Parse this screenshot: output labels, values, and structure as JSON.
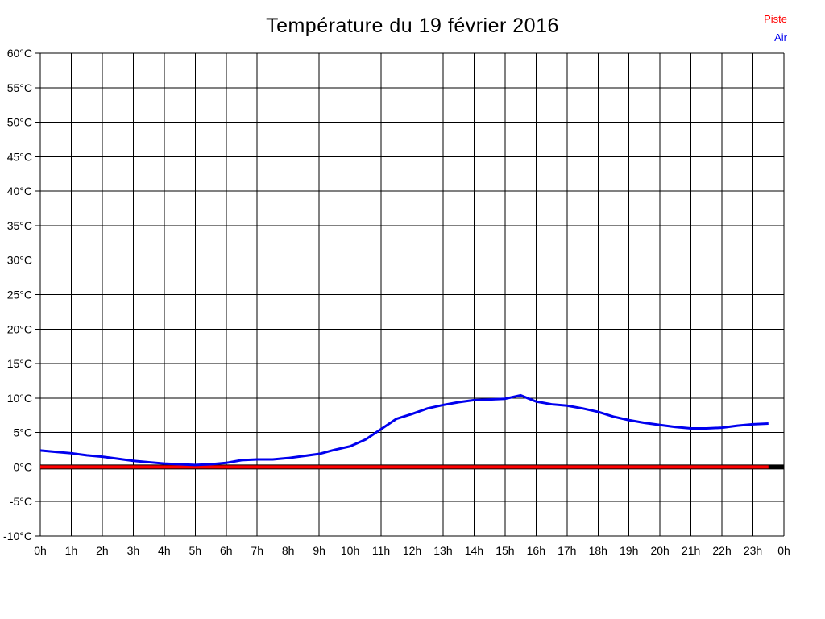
{
  "title": "Température du 19 février 2016",
  "legend": [
    {
      "label": "Piste",
      "color": "#ff0000"
    },
    {
      "label": "Air",
      "color": "#0000ee"
    }
  ],
  "colors": {
    "piste": "#ff0000",
    "air": "#0000ee",
    "grid": "#000000",
    "zero_baseline": "#000000",
    "background": "#ffffff"
  },
  "chart_data": {
    "type": "line",
    "title": "Température du 19 février 2016",
    "xlabel": "",
    "ylabel": "",
    "xlim": [
      0,
      24
    ],
    "ylim": [
      -10,
      60
    ],
    "x_step": 1,
    "y_step": 5,
    "grid": true,
    "legend_position": "top-right",
    "x_tick_labels": [
      "0h",
      "1h",
      "2h",
      "3h",
      "4h",
      "5h",
      "6h",
      "7h",
      "8h",
      "9h",
      "10h",
      "11h",
      "12h",
      "13h",
      "14h",
      "15h",
      "16h",
      "17h",
      "18h",
      "19h",
      "20h",
      "21h",
      "22h",
      "23h",
      "0h"
    ],
    "y_tick_labels": [
      "-10°C",
      "-5°C",
      "0°C",
      "5°C",
      "10°C",
      "15°C",
      "20°C",
      "25°C",
      "30°C",
      "35°C",
      "40°C",
      "45°C",
      "50°C",
      "55°C",
      "60°C"
    ],
    "zero_baseline": {
      "y": 0,
      "color": "#000000"
    },
    "series": [
      {
        "name": "Piste",
        "color": "#ff0000",
        "x": [
          0,
          23.5
        ],
        "values": [
          0,
          0
        ]
      },
      {
        "name": "Air",
        "color": "#0000ee",
        "x": [
          0,
          0.5,
          1,
          1.5,
          2,
          2.5,
          3,
          3.5,
          4,
          4.5,
          5,
          5.5,
          6,
          6.5,
          7,
          7.5,
          8,
          8.5,
          9,
          9.5,
          10,
          10.5,
          11,
          11.5,
          12,
          12.5,
          13,
          13.5,
          14,
          14.5,
          15,
          15.5,
          16,
          16.5,
          17,
          17.5,
          18,
          18.5,
          19,
          19.5,
          20,
          20.5,
          21,
          21.5,
          22,
          22.5,
          23,
          23.5
        ],
        "values": [
          2.4,
          2.2,
          2.0,
          1.7,
          1.5,
          1.2,
          0.9,
          0.7,
          0.5,
          0.4,
          0.3,
          0.4,
          0.6,
          1.0,
          1.1,
          1.1,
          1.3,
          1.6,
          1.9,
          2.5,
          3.0,
          4.0,
          5.5,
          7.0,
          7.7,
          8.5,
          9.0,
          9.4,
          9.7,
          9.8,
          9.9,
          10.4,
          9.5,
          9.1,
          8.9,
          8.5,
          8.0,
          7.3,
          6.8,
          6.4,
          6.1,
          5.8,
          5.6,
          5.6,
          5.7,
          6.0,
          6.2,
          6.3
        ]
      }
    ]
  }
}
